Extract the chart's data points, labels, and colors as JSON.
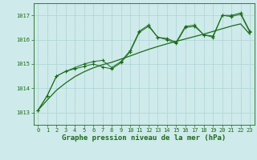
{
  "title": "Graphe pression niveau de la mer (hPa)",
  "bg_color": "#ceeaea",
  "grid_color": "#aed4d4",
  "line_color": "#1a6b1a",
  "marker_color": "#1a6b1a",
  "xlim": [
    -0.5,
    23.5
  ],
  "ylim": [
    1012.5,
    1017.5
  ],
  "yticks": [
    1013,
    1014,
    1015,
    1016,
    1017
  ],
  "xticks": [
    0,
    1,
    2,
    3,
    4,
    5,
    6,
    7,
    8,
    9,
    10,
    11,
    12,
    13,
    14,
    15,
    16,
    17,
    18,
    19,
    20,
    21,
    22,
    23
  ],
  "series1": [
    1013.1,
    1013.7,
    1014.5,
    1014.7,
    1014.8,
    1014.9,
    1015.0,
    1014.88,
    1014.8,
    1015.05,
    1015.5,
    1016.3,
    1016.55,
    1016.1,
    1016.0,
    1015.85,
    1016.5,
    1016.55,
    1016.2,
    1016.1,
    1017.0,
    1016.95,
    1017.05,
    1016.3
  ],
  "series2": [
    1013.1,
    1013.7,
    1014.5,
    1014.7,
    1014.85,
    1015.0,
    1015.1,
    1015.15,
    1014.85,
    1015.1,
    1015.55,
    1016.35,
    1016.6,
    1016.1,
    1016.05,
    1015.9,
    1016.55,
    1016.6,
    1016.2,
    1016.15,
    1017.0,
    1017.0,
    1017.1,
    1016.35
  ],
  "series_smooth": [
    1013.1,
    1013.52,
    1013.92,
    1014.22,
    1014.48,
    1014.68,
    1014.84,
    1014.97,
    1015.07,
    1015.2,
    1015.33,
    1015.47,
    1015.6,
    1015.72,
    1015.83,
    1015.93,
    1016.03,
    1016.13,
    1016.23,
    1016.34,
    1016.45,
    1016.56,
    1016.65,
    1016.22
  ],
  "title_fontsize": 6.5,
  "tick_fontsize": 5.0,
  "ylabel_pad": 2,
  "xlabel_pad": 1
}
